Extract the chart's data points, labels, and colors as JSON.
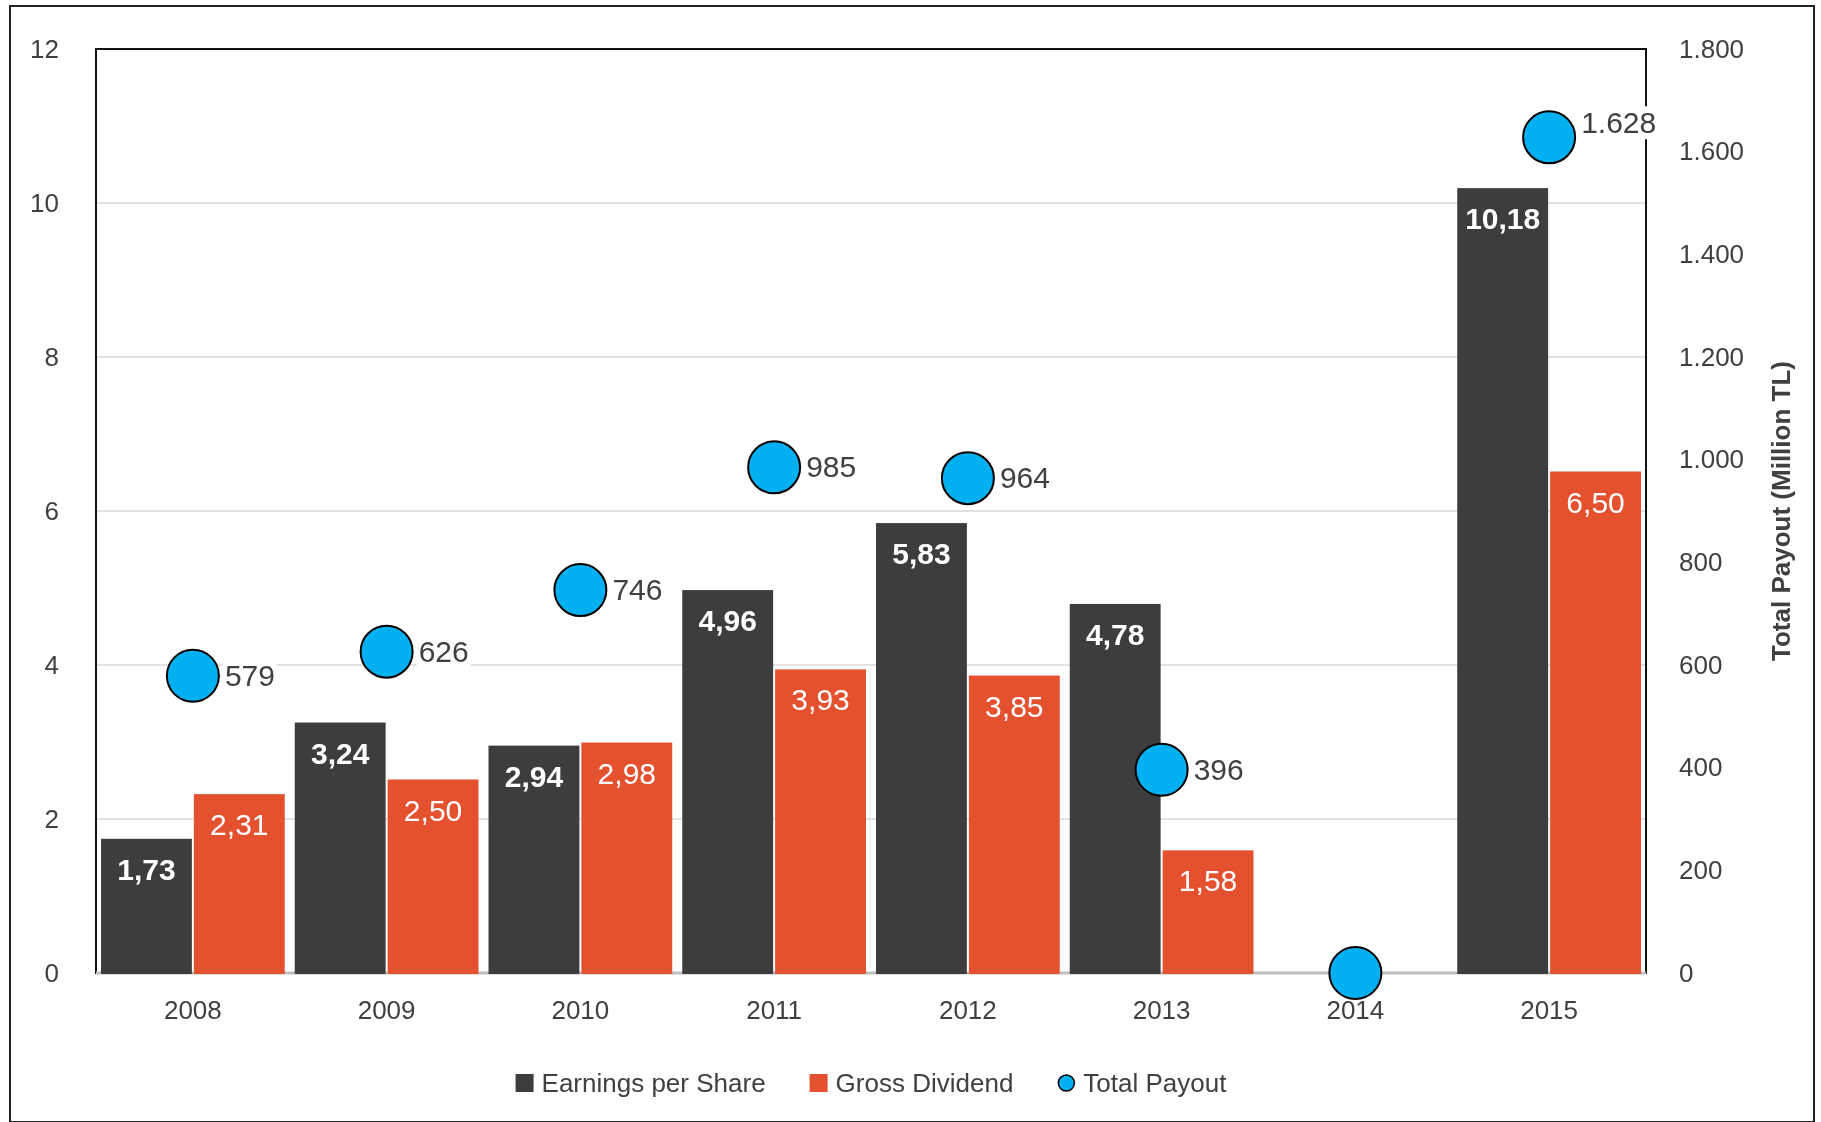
{
  "chart_data": {
    "type": "bar",
    "y2label": "Total Payout (Million TL)",
    "categories": [
      "2008",
      "2009",
      "2010",
      "2011",
      "2012",
      "2013",
      "2014",
      "2015"
    ],
    "series": [
      {
        "name": "Earnings per Share",
        "color": "#3d3d3f",
        "values": [
          1.73,
          3.24,
          2.94,
          4.96,
          5.83,
          4.78,
          null,
          10.18
        ],
        "value_labels": [
          "1,73",
          "3,24",
          "2,94",
          "4,96",
          "5,83",
          "4,78",
          null,
          "10,18"
        ]
      },
      {
        "name": "Gross Dividend",
        "color": "#e4512f",
        "values": [
          2.31,
          2.5,
          2.98,
          3.93,
          3.85,
          1.58,
          null,
          6.5
        ],
        "value_labels": [
          "2,31",
          "2,50",
          "2,98",
          "3,93",
          "3,85",
          "1,58",
          null,
          "6,50"
        ]
      },
      {
        "name": "Total Payout",
        "type": "scatter",
        "axis": "y2",
        "marker": "circle",
        "color": "#00b0f0",
        "values": [
          579,
          626,
          746,
          985,
          964,
          396,
          0,
          1628
        ],
        "value_labels": [
          "579",
          "626",
          "746",
          "985",
          "964",
          "396",
          null,
          "1.628"
        ]
      }
    ],
    "ylim": [
      0,
      12
    ],
    "yticks": [
      0,
      2,
      4,
      6,
      8,
      10,
      12
    ],
    "y2lim": [
      0,
      1800
    ],
    "y2ticks": [
      0,
      200,
      400,
      600,
      800,
      {
        "value": 1000,
        "label": "1.000"
      },
      {
        "value": 1200,
        "label": "1.200"
      },
      {
        "value": 1400,
        "label": "1.400"
      },
      {
        "value": 1600,
        "label": "1.600"
      },
      {
        "value": 1800,
        "label": "1.800"
      }
    ],
    "grid": "y",
    "legend": "bottom"
  }
}
